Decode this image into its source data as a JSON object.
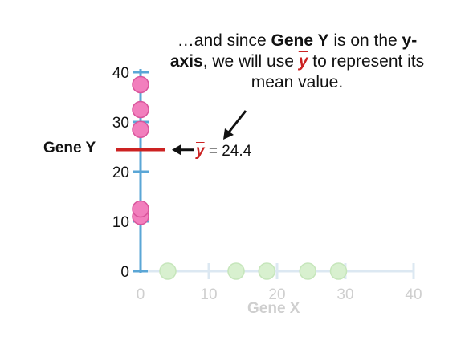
{
  "annotation": {
    "part1": "…and since ",
    "gene_y": "Gene Y",
    "part2": " is on the ",
    "y_axis": "y-axis",
    "part3": ", we will use ",
    "symbol": "y",
    "part4": " to represent its mean value."
  },
  "mean_label": {
    "symbol": "y",
    "text": " = 24.4"
  },
  "colors": {
    "axis": "#5aa6d6",
    "faded_axis": "#dce8f2",
    "point": "#f27fbd",
    "point_stroke": "#d9559c",
    "faded_point": "#d8f0cf",
    "faded_point_stroke": "#c6e6bb",
    "mean_line": "#cc2222",
    "faded_text": "#cfcfcf",
    "text": "#111111"
  },
  "chart_data": {
    "type": "scatter",
    "ylabel": "Gene Y",
    "xlabel": "Gene X",
    "xlim": [
      0,
      40
    ],
    "ylim": [
      0,
      40
    ],
    "x_ticks": [
      "0",
      "10",
      "20",
      "30",
      "40"
    ],
    "y_ticks": [
      "0",
      "10",
      "20",
      "30",
      "40"
    ],
    "y_axis_points": [
      11,
      12.5,
      28.5,
      32.5,
      37.5
    ],
    "x_axis_points": [
      4,
      14,
      18.5,
      24.5,
      29
    ],
    "mean_y": 24.4
  }
}
